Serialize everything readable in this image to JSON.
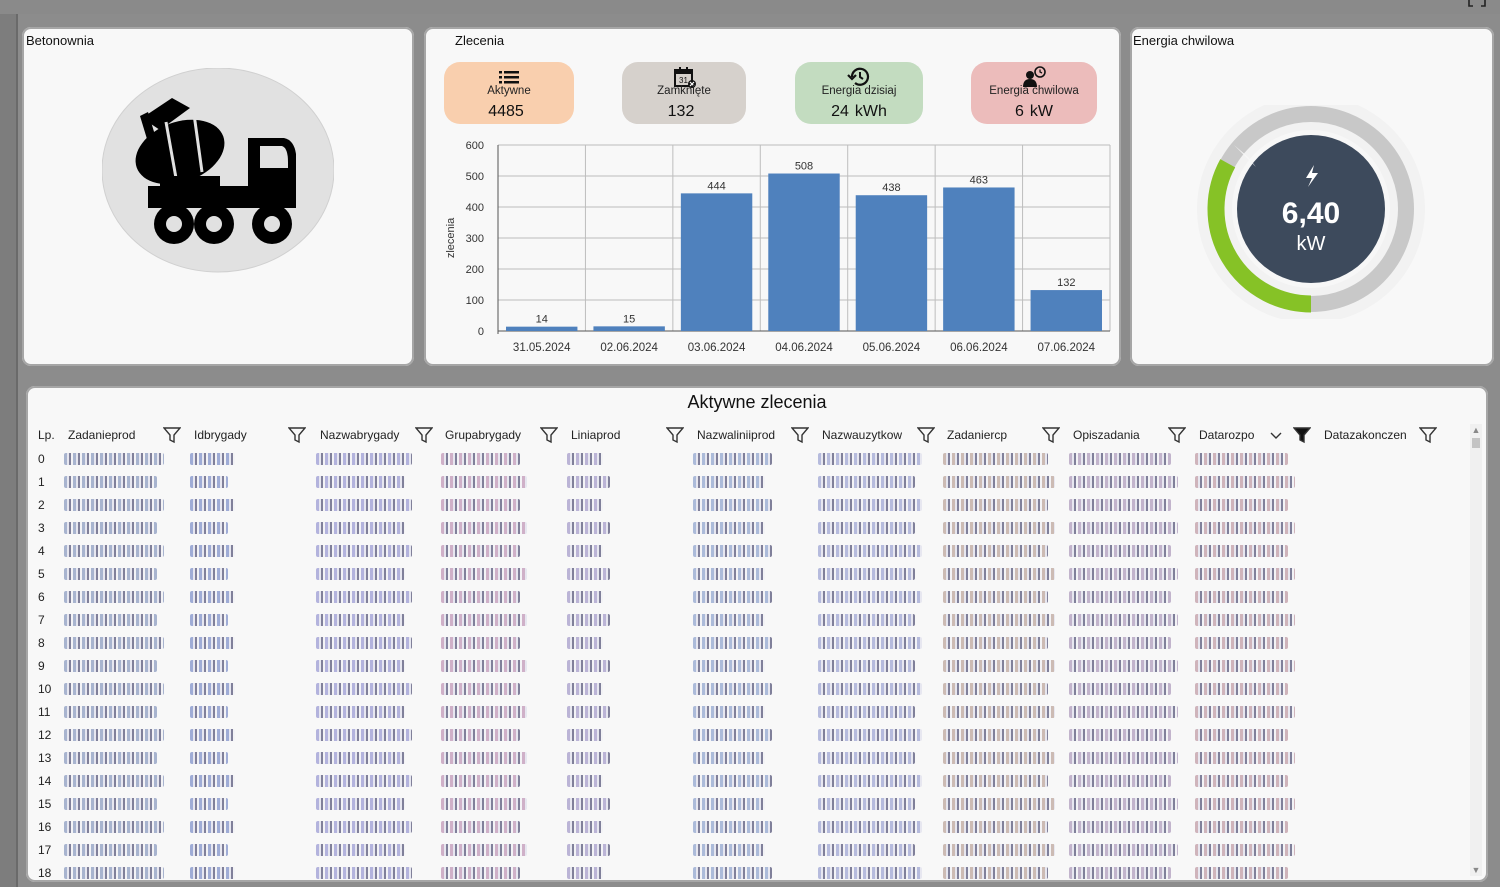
{
  "panels": {
    "betonownia": {
      "title": "Betonownia"
    },
    "zlecenia": {
      "title": "Zlecenia"
    },
    "energia": {
      "title": "Energia chwilowa"
    }
  },
  "kpis": [
    {
      "label": "Aktywne",
      "value": "4485",
      "unit": "",
      "icon": "list-icon",
      "color": "#f9cfae"
    },
    {
      "label": "Zamknięte",
      "value": "132",
      "unit": "",
      "icon": "calendar-x-icon",
      "color": "#d6d1cc"
    },
    {
      "label": "Energia dzisiaj",
      "value": "24",
      "unit": "kWh",
      "icon": "history-icon",
      "color": "#c3dcc0"
    },
    {
      "label": "Energia chwilowa",
      "value": "6",
      "unit": "kW",
      "icon": "worker-clock-icon",
      "color": "#ecbcbb"
    }
  ],
  "chart_data": {
    "type": "bar",
    "categories": [
      "31.05.2024",
      "02.06.2024",
      "03.06.2024",
      "04.06.2024",
      "05.06.2024",
      "06.06.2024",
      "07.06.2024"
    ],
    "values": [
      14,
      15,
      444,
      508,
      438,
      463,
      132
    ],
    "ylabel": "zlecenia",
    "ylim": [
      0,
      600
    ],
    "yticks": [
      0,
      100,
      200,
      300,
      400,
      500,
      600
    ],
    "grid": true,
    "bar_color": "#4f81bd"
  },
  "gauge": {
    "value": "6,40",
    "unit": "kW",
    "fraction": 0.33,
    "fill_color": "#86c226",
    "track_color": "#c8c8c8",
    "center_color": "#3d4a5c",
    "icon": "lightning-icon"
  },
  "table": {
    "title": "Aktywne zlecenia",
    "columns": [
      "Lp.",
      "Zadanieprod",
      "Idbrygady",
      "Nazwabrygady",
      "Grupabrygady",
      "Liniaprod",
      "Nazwaliniiprod",
      "Nazwauzytkow",
      "Zadaniercp",
      "Opiszadania",
      "Datarozpo",
      "Datazakonczen"
    ],
    "row_numbers": [
      "0",
      "1",
      "2",
      "3",
      "4",
      "5",
      "6",
      "7",
      "8",
      "9",
      "10",
      "11",
      "12",
      "13",
      "14",
      "15",
      "16",
      "17",
      "18"
    ]
  }
}
